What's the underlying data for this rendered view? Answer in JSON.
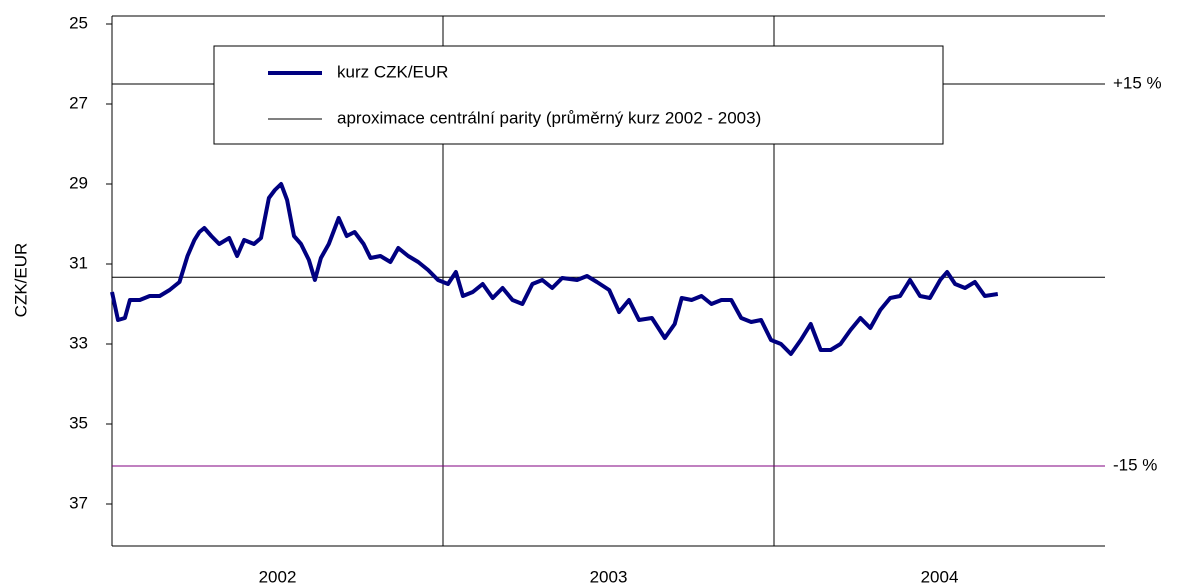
{
  "chart_data": {
    "type": "line",
    "y_label": "CZK/EUR",
    "xlim": [
      2002,
      2005
    ],
    "xticks": [
      {
        "value": 2002.5,
        "label": "2002"
      },
      {
        "value": 2003.5,
        "label": "2003"
      },
      {
        "value": 2004.5,
        "label": "2004"
      }
    ],
    "x_grid": [
      2003,
      2004
    ],
    "ylim": [
      24.8,
      38.05
    ],
    "y_inverted": true,
    "yticks": [
      25,
      27,
      29,
      31,
      33,
      35,
      37
    ],
    "reference_lines": [
      {
        "value": 26.5,
        "label": "+15 %",
        "color": "#000000"
      },
      {
        "value": 31.33,
        "name": "aproximace centrální parity (průměrný kurz 2002 - 2003)",
        "color": "#000000"
      },
      {
        "value": 36.05,
        "label": "-15 %",
        "color": "#800080"
      }
    ],
    "series": [
      {
        "name": "kurz CZK/EUR",
        "color": "#000080",
        "x": [
          2002,
          2002.018,
          2002.039,
          2002.054,
          2002.084,
          2002.114,
          2002.144,
          2002.174,
          2002.204,
          2002.228,
          2002.249,
          2002.264,
          2002.279,
          2002.3,
          2002.324,
          2002.354,
          2002.378,
          2002.399,
          2002.429,
          2002.45,
          2002.474,
          2002.492,
          2002.511,
          2002.529,
          2002.55,
          2002.571,
          2002.595,
          2002.613,
          2002.631,
          2002.655,
          2002.685,
          2002.709,
          2002.733,
          2002.76,
          2002.781,
          2002.811,
          2002.841,
          2002.865,
          2002.895,
          2002.925,
          2002.955,
          2002.985,
          2003.015,
          2003.039,
          2003.06,
          2003.09,
          2003.12,
          2003.15,
          2003.18,
          2003.21,
          2003.24,
          2003.27,
          2003.3,
          2003.33,
          2003.36,
          2003.405,
          2003.435,
          2003.465,
          2003.502,
          2003.532,
          2003.562,
          2003.592,
          2003.631,
          2003.67,
          2003.7,
          2003.721,
          2003.751,
          2003.781,
          2003.811,
          2003.841,
          2003.871,
          2003.901,
          2003.931,
          2003.961,
          2003.991,
          2004.021,
          2004.051,
          2004.081,
          2004.111,
          2004.141,
          2004.171,
          2004.201,
          2004.231,
          2004.261,
          2004.291,
          2004.321,
          2004.351,
          2004.381,
          2004.411,
          2004.441,
          2004.471,
          2004.502,
          2004.523,
          2004.547,
          2004.577,
          2004.607,
          2004.637,
          2004.676
        ],
        "values": [
          31.7,
          32.4,
          32.35,
          31.9,
          31.9,
          31.8,
          31.8,
          31.65,
          31.45,
          30.8,
          30.4,
          30.2,
          30.1,
          30.3,
          30.5,
          30.35,
          30.8,
          30.4,
          30.5,
          30.35,
          29.35,
          29.15,
          29.0,
          29.4,
          30.3,
          30.5,
          30.9,
          31.4,
          30.85,
          30.5,
          29.85,
          30.3,
          30.2,
          30.5,
          30.85,
          30.8,
          30.95,
          30.6,
          30.8,
          30.95,
          31.15,
          31.4,
          31.5,
          31.2,
          31.8,
          31.7,
          31.5,
          31.85,
          31.6,
          31.9,
          32.0,
          31.5,
          31.4,
          31.6,
          31.35,
          31.4,
          31.3,
          31.45,
          31.65,
          32.2,
          31.9,
          32.4,
          32.35,
          32.85,
          32.5,
          31.85,
          31.9,
          31.8,
          32.0,
          31.9,
          31.9,
          32.35,
          32.45,
          32.4,
          32.9,
          33.0,
          33.25,
          32.9,
          32.5,
          33.15,
          33.15,
          33.0,
          32.65,
          32.35,
          32.6,
          32.15,
          31.85,
          31.8,
          31.4,
          31.8,
          31.85,
          31.4,
          31.2,
          31.5,
          31.6,
          31.45,
          31.8,
          31.75
        ]
      }
    ]
  }
}
